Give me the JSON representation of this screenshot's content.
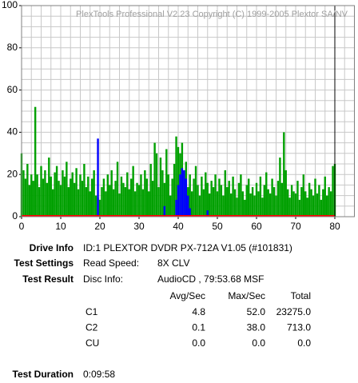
{
  "chart_data": {
    "type": "bar",
    "title": "PlexTools Professional V2.23 Copyright (C) 1999-2005 Plextor SA/NV",
    "xlim": [
      0,
      85
    ],
    "ylim": [
      0,
      100
    ],
    "xticks": [
      0,
      10,
      20,
      30,
      40,
      50,
      60,
      70,
      80
    ],
    "yticks": [
      0,
      20,
      40,
      60,
      80,
      100
    ],
    "xgrid": [
      2.5,
      5,
      7.5,
      10,
      12.5,
      15,
      17.5,
      20,
      22.5,
      25,
      27.5,
      30,
      32.5,
      35,
      37.5,
      40,
      42.5,
      45,
      47.5,
      50,
      52.5,
      55,
      57.5,
      60,
      62.5,
      65,
      67.5,
      70,
      72.5,
      75,
      77.5,
      80,
      82.5
    ],
    "ygrid": [
      5,
      10,
      15,
      20,
      25,
      30,
      35,
      40,
      45,
      50,
      55,
      60,
      65,
      70,
      75,
      80,
      85,
      90,
      95
    ],
    "grid_color": "#c8c8c8",
    "end_marker": 80,
    "series": [
      {
        "color": "#00a000",
        "x": [
          0,
          0.5,
          1,
          1.5,
          2,
          2.5,
          3,
          3.5,
          4,
          4.5,
          5,
          5.5,
          6,
          6.5,
          7,
          7.5,
          8,
          8.5,
          9,
          9.5,
          10,
          10.5,
          11,
          11.5,
          12,
          12.5,
          13,
          13.5,
          14,
          14.5,
          15,
          15.5,
          16,
          16.5,
          17,
          17.5,
          18,
          18.5,
          19,
          19.5,
          20,
          20.5,
          21,
          21.5,
          22,
          22.5,
          23,
          23.5,
          24,
          24.5,
          25,
          25.5,
          26,
          26.5,
          27,
          27.5,
          28,
          28.5,
          29,
          29.5,
          30,
          30.5,
          31,
          31.5,
          32,
          32.5,
          33,
          33.5,
          34,
          34.5,
          35,
          35.5,
          36,
          36.5,
          37,
          37.5,
          38,
          38.5,
          39,
          39.5,
          40,
          40.5,
          41,
          41.5,
          42,
          42.5,
          43,
          43.5,
          44,
          44.5,
          45,
          45.5,
          46,
          46.5,
          47,
          47.5,
          48,
          48.5,
          49,
          49.5,
          50,
          50.5,
          51,
          51.5,
          52,
          52.5,
          53,
          53.5,
          54,
          54.5,
          55,
          55.5,
          56,
          56.5,
          57,
          57.5,
          58,
          58.5,
          59,
          59.5,
          60,
          60.5,
          61,
          61.5,
          62,
          62.5,
          63,
          63.5,
          64,
          64.5,
          65,
          65.5,
          66,
          66.5,
          67,
          67.5,
          68,
          68.5,
          69,
          69.5,
          70,
          70.5,
          71,
          71.5,
          72,
          72.5,
          73,
          73.5,
          74,
          74.5,
          75,
          75.5,
          76,
          76.5,
          77,
          77.5,
          78,
          78.5,
          79,
          79.5,
          80
        ],
        "values": [
          30,
          22,
          18,
          25,
          15,
          20,
          17,
          52,
          20,
          14,
          24,
          18,
          22,
          16,
          28,
          19,
          13,
          21,
          24,
          17,
          15,
          22,
          19,
          26,
          14,
          18,
          21,
          16,
          23,
          13,
          20,
          17,
          25,
          14,
          19,
          12,
          18,
          22,
          10,
          9,
          8,
          14,
          18,
          12,
          20,
          15,
          22,
          13,
          17,
          26,
          11,
          19,
          16,
          14,
          21,
          13,
          18,
          24,
          12,
          16,
          15,
          20,
          13,
          22,
          18,
          12,
          25,
          17,
          35,
          30,
          14,
          28,
          22,
          16,
          32,
          20,
          10,
          18,
          25,
          38,
          33,
          30,
          35,
          22,
          26,
          14,
          20,
          12,
          18,
          24,
          15,
          10,
          19,
          13,
          21,
          16,
          11,
          17,
          14,
          20,
          12,
          18,
          15,
          10,
          22,
          14,
          17,
          11,
          19,
          13,
          9,
          16,
          20,
          12,
          8,
          15,
          18,
          11,
          14,
          10,
          16,
          12,
          19,
          9,
          15,
          21,
          13,
          11,
          18,
          14,
          10,
          17,
          28,
          16,
          40,
          22,
          13,
          9,
          15,
          12,
          11,
          17,
          8,
          14,
          20,
          12,
          9,
          16,
          13,
          10,
          18,
          11,
          15,
          8,
          13,
          19,
          10,
          14,
          12,
          24,
          25
        ]
      },
      {
        "color": "#0000ff",
        "x": [
          19.5,
          36.5,
          39.5,
          40,
          40.5,
          41,
          41.5,
          42,
          42.5,
          43,
          47.5
        ],
        "values": [
          37,
          5,
          8,
          15,
          20,
          23,
          22,
          18,
          10,
          4,
          3
        ]
      },
      {
        "color": "#ff0000",
        "x": [
          0,
          80
        ],
        "values": [
          0,
          0
        ]
      }
    ]
  },
  "info": {
    "drive": {
      "label": "Drive Info",
      "value": "ID:1 PLEXTOR DVDR PX-712A V1.05 (#101831)"
    },
    "settings": {
      "label": "Test Settings",
      "key": "Read Speed:",
      "value": "8X CLV"
    },
    "result": {
      "label": "Test Result",
      "key": "Disc Info:",
      "value": "AudioCD , 79:53.68 MSF"
    },
    "table": {
      "headers": [
        "Avg/Sec",
        "Max/Sec",
        "Total"
      ],
      "rows": [
        [
          "C1",
          "4.8",
          "52.0",
          "23275.0"
        ],
        [
          "C2",
          "0.1",
          "38.0",
          "713.0"
        ],
        [
          "CU",
          "0.0",
          "0.0",
          "0.0"
        ]
      ]
    },
    "duration": {
      "label": "Test Duration",
      "value": "0:09:58"
    }
  }
}
